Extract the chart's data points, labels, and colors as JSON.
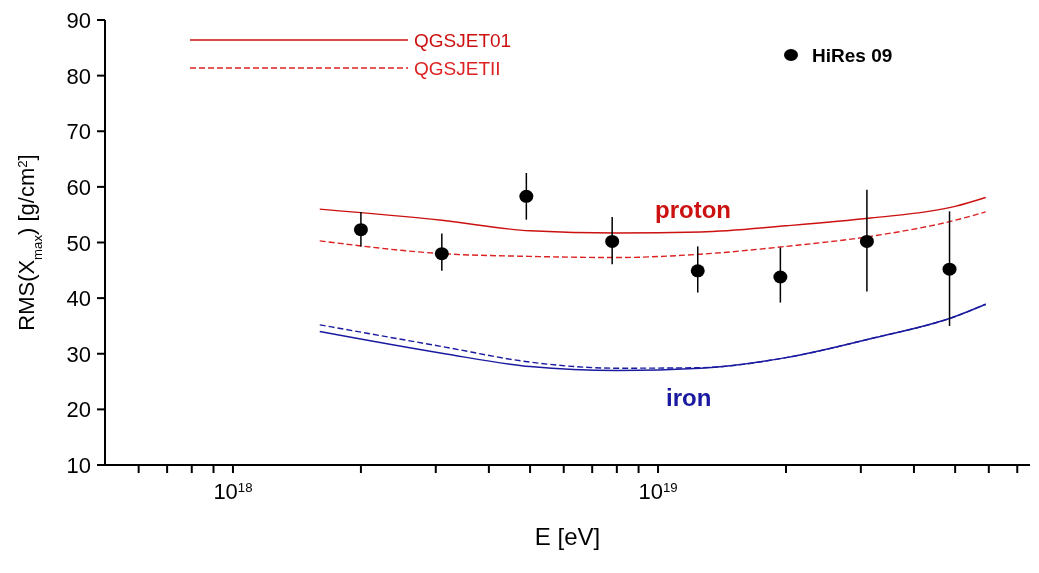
{
  "chart_data": {
    "type": "line",
    "xlabel": "E [eV]",
    "ylabel": "RMS(X$_{max}$) [g/cm$^{2}$]",
    "log": "x",
    "xlim": [
      5e+17,
      7.5e+19
    ],
    "xticks": [
      {
        "value": 6e+17,
        "label": null
      },
      {
        "value": 7e+17,
        "label": null
      },
      {
        "value": 8e+17,
        "label": null
      },
      {
        "value": 9e+17,
        "label": null
      },
      {
        "value": 1e+18,
        "label": "10$^{18}$"
      },
      {
        "value": 2e+18,
        "label": null
      },
      {
        "value": 3e+18,
        "label": null
      },
      {
        "value": 4e+18,
        "label": null
      },
      {
        "value": 5e+18,
        "label": null
      },
      {
        "value": 6e+18,
        "label": null
      },
      {
        "value": 7e+18,
        "label": null
      },
      {
        "value": 8e+18,
        "label": null
      },
      {
        "value": 9e+18,
        "label": null
      },
      {
        "value": 1e+19,
        "label": "10$^{19}$"
      },
      {
        "value": 2e+19,
        "label": null
      },
      {
        "value": 3e+19,
        "label": null
      },
      {
        "value": 4e+19,
        "label": null
      },
      {
        "value": 5e+19,
        "label": null
      },
      {
        "value": 6e+19,
        "label": null
      },
      {
        "value": 7e+19,
        "label": null
      }
    ],
    "ylim": [
      10,
      90
    ],
    "yticks": [
      10,
      20,
      30,
      40,
      50,
      60,
      70,
      80,
      90
    ],
    "grid": false,
    "legend": "top",
    "series": [
      {
        "name": "QGSJET01",
        "color": "#cc1111",
        "line_style": "solid",
        "marker": "none",
        "x": [
          1.6e+18,
          3.1e+18,
          5e+18,
          8e+18,
          1.26e+19,
          2e+19,
          3.16e+19,
          5e+19,
          5.9e+19
        ],
        "values": [
          56.0,
          54.0,
          52.1,
          51.7,
          51.9,
          53.0,
          54.4,
          56.5,
          58.1
        ]
      },
      {
        "name": "QGSJETII",
        "color": "#dd2222",
        "line_style": "dashed",
        "marker": "none",
        "x": [
          1.6e+18,
          3.1e+18,
          5e+18,
          8e+18,
          1.26e+19,
          2e+19,
          3.16e+19,
          5e+19,
          5.9e+19
        ],
        "values": [
          50.3,
          48.0,
          47.5,
          47.3,
          47.9,
          49.3,
          51.1,
          54.0,
          55.5
        ]
      },
      {
        "color": "#1a1aa0",
        "line_style": "solid",
        "marker": "none",
        "x": [
          1.6e+18,
          3.1e+18,
          5e+18,
          8e+18,
          1.26e+19,
          2e+19,
          3.16e+19,
          5e+19,
          5.9e+19
        ],
        "values": [
          34.0,
          30.1,
          27.7,
          27.0,
          27.4,
          29.3,
          32.7,
          36.7,
          38.9
        ]
      },
      {
        "color": "#1a1aa0",
        "line_style": "dashed",
        "marker": "none",
        "x": [
          1.6e+18,
          3.1e+18,
          5e+18,
          8e+18,
          1.26e+19,
          2e+19,
          3.16e+19,
          5e+19,
          5.9e+19
        ],
        "values": [
          35.2,
          31.3,
          28.5,
          27.4,
          27.5,
          29.3,
          32.7,
          36.7,
          38.9
        ]
      },
      {
        "name": "HiRes 09",
        "type": "scatter",
        "color": "#000000",
        "marker": "circle",
        "x": [
          2e+18,
          3.1e+18,
          4.9e+18,
          7.8e+18,
          1.24e+19,
          1.94e+19,
          3.1e+19,
          4.85e+19
        ],
        "values": [
          52.3,
          48.0,
          58.3,
          50.2,
          44.9,
          43.8,
          50.2,
          45.2
        ],
        "errors": [
          [
            49.3,
            55.5
          ],
          [
            44.9,
            51.6
          ],
          [
            54.1,
            62.5
          ],
          [
            46.1,
            54.6
          ],
          [
            41.0,
            49.3
          ],
          [
            39.2,
            49.1
          ],
          [
            41.2,
            59.5
          ],
          [
            35.0,
            55.6
          ]
        ]
      }
    ],
    "annotations": [
      "proton",
      "iron"
    ]
  }
}
